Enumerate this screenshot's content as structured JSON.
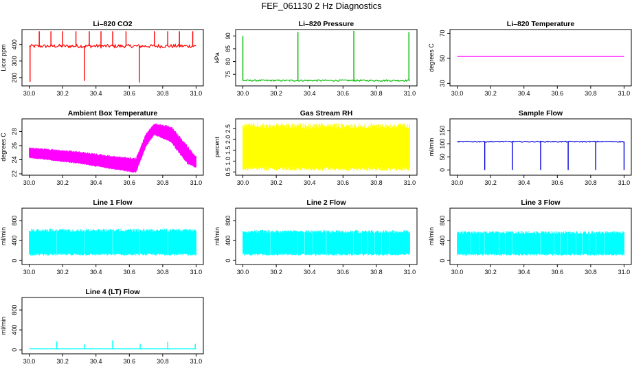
{
  "figure_title": "FEF_061130  2 Hz Diagnostics",
  "chart_data": [
    {
      "type": "line",
      "id": "co2",
      "title": "Li–820 CO2",
      "ylabel": "Licor ppm",
      "color": "#ff0000",
      "xlim": [
        30.0,
        31.0
      ],
      "ylim": [
        150,
        490
      ],
      "xticks": [
        "30.0",
        "30.2",
        "30.4",
        "30.6",
        "30.8",
        "31.0"
      ],
      "yticks": [
        "200",
        "300",
        "400"
      ],
      "ytick_values": [
        200,
        300,
        400
      ],
      "baseline": 390,
      "noise": 10,
      "spikes": [
        {
          "x": 30.005,
          "y": 175
        },
        {
          "x": 30.06,
          "y": 480
        },
        {
          "x": 30.13,
          "y": 480
        },
        {
          "x": 30.2,
          "y": 480
        },
        {
          "x": 30.28,
          "y": 480
        },
        {
          "x": 30.33,
          "y": 180
        },
        {
          "x": 30.36,
          "y": 480
        },
        {
          "x": 30.43,
          "y": 480
        },
        {
          "x": 30.5,
          "y": 480
        },
        {
          "x": 30.58,
          "y": 480
        },
        {
          "x": 30.66,
          "y": 170
        },
        {
          "x": 30.75,
          "y": 480
        },
        {
          "x": 30.83,
          "y": 480
        },
        {
          "x": 30.9,
          "y": 480
        },
        {
          "x": 30.98,
          "y": 480
        }
      ]
    },
    {
      "type": "line",
      "id": "pressure",
      "title": "Li–820 Pressure",
      "ylabel": "kPa",
      "color": "#00bb00",
      "xlim": [
        30.0,
        31.0
      ],
      "ylim": [
        70.5,
        92.5
      ],
      "xticks": [
        "30.0",
        "30.2",
        "30.4",
        "30.6",
        "30.8",
        "31.0"
      ],
      "yticks": [
        "75",
        "80",
        "85",
        "90"
      ],
      "ytick_values": [
        75,
        80,
        85,
        90
      ],
      "baseline": 72.6,
      "noise": 0.3,
      "spikes": [
        {
          "x": 30.0,
          "y": 90
        },
        {
          "x": 30.33,
          "y": 91.5
        },
        {
          "x": 30.665,
          "y": 92
        },
        {
          "x": 30.995,
          "y": 91.5
        }
      ]
    },
    {
      "type": "line",
      "id": "licor_temp",
      "title": "Li–820 Temperature",
      "ylabel": "degrees C",
      "color": "#ff00ff",
      "xlim": [
        30.0,
        31.0
      ],
      "ylim": [
        28,
        73
      ],
      "xticks": [
        "30.0",
        "30.2",
        "30.4",
        "30.6",
        "30.8",
        "31.0"
      ],
      "yticks": [
        "30",
        "50",
        "70"
      ],
      "ytick_values": [
        30,
        50,
        70
      ],
      "baseline": 51.5,
      "noise": 0,
      "spikes": []
    },
    {
      "type": "band",
      "id": "box_temp",
      "title": "Ambient Box Temperature",
      "ylabel": "degrees C",
      "color": "#ff00ff",
      "xlim": [
        30.0,
        31.0
      ],
      "ylim": [
        21.8,
        29.8
      ],
      "xticks": [
        "30.0",
        "30.2",
        "30.4",
        "30.6",
        "30.8",
        "31.0"
      ],
      "yticks": [
        "22",
        "24",
        "26",
        "28"
      ],
      "ytick_values": [
        22,
        24,
        26,
        28
      ],
      "upper": [
        [
          30.0,
          25.8
        ],
        [
          30.3,
          25.2
        ],
        [
          30.5,
          24.6
        ],
        [
          30.64,
          24.3
        ],
        [
          30.7,
          27.8
        ],
        [
          30.75,
          29.2
        ],
        [
          30.85,
          28.8
        ],
        [
          30.95,
          26.0
        ],
        [
          31.0,
          24.5
        ]
      ],
      "lower": [
        [
          30.0,
          24.2
        ],
        [
          30.3,
          23.4
        ],
        [
          30.5,
          22.6
        ],
        [
          30.64,
          22.1
        ],
        [
          30.7,
          25.8
        ],
        [
          30.75,
          27.5
        ],
        [
          30.85,
          26.4
        ],
        [
          30.95,
          23.3
        ],
        [
          31.0,
          22.8
        ]
      ]
    },
    {
      "type": "band",
      "id": "rh",
      "title": "Gas Stream RH",
      "ylabel": "percent",
      "color": "#ffff00",
      "xlim": [
        30.0,
        31.0
      ],
      "ylim": [
        0.35,
        2.95
      ],
      "xticks": [
        "30.0",
        "30.2",
        "30.4",
        "30.6",
        "30.8",
        "31.0"
      ],
      "yticks": [
        "0.5",
        "1.0",
        "1.5",
        "2.0",
        "2.5"
      ],
      "ytick_values": [
        0.5,
        1.0,
        1.5,
        2.0,
        2.5
      ],
      "upper": [
        [
          30.0,
          2.75
        ],
        [
          31.0,
          2.75
        ]
      ],
      "lower": [
        [
          30.0,
          0.55
        ],
        [
          31.0,
          0.55
        ]
      ]
    },
    {
      "type": "line",
      "id": "sample_flow",
      "title": "Sample Flow",
      "ylabel": "ml/min",
      "color": "#0000dd",
      "xlim": [
        30.0,
        31.0
      ],
      "ylim": [
        -20,
        195
      ],
      "xticks": [
        "30.0",
        "30.2",
        "30.4",
        "30.6",
        "30.8",
        "31.0"
      ],
      "yticks": [
        "0",
        "50",
        "100",
        "150"
      ],
      "ytick_values": [
        0,
        50,
        100,
        150
      ],
      "baseline": 108,
      "noise": 2,
      "spikes": [
        {
          "x": 30.165,
          "y": 0
        },
        {
          "x": 30.33,
          "y": 0
        },
        {
          "x": 30.5,
          "y": 0
        },
        {
          "x": 30.665,
          "y": 0
        },
        {
          "x": 30.83,
          "y": 0
        },
        {
          "x": 31.0,
          "y": 0
        }
      ]
    },
    {
      "type": "band",
      "id": "line1",
      "title": "Line 1 Flow",
      "ylabel": "ml/min",
      "color": "#00ffff",
      "xlim": [
        30.0,
        31.0
      ],
      "ylim": [
        -80,
        1050
      ],
      "xticks": [
        "30.0",
        "30.2",
        "30.4",
        "30.6",
        "30.8",
        "31.0"
      ],
      "yticks": [
        "0",
        "400",
        "800"
      ],
      "ytick_values": [
        0,
        400,
        800
      ],
      "upper": [
        [
          30.0,
          640
        ],
        [
          31.0,
          640
        ]
      ],
      "lower": [
        [
          30.0,
          100
        ],
        [
          31.0,
          100
        ]
      ],
      "gaps": [
        30.165,
        30.33,
        30.5,
        30.665,
        30.83
      ]
    },
    {
      "type": "band",
      "id": "line2",
      "title": "Line 2 Flow",
      "ylabel": "ml/min",
      "color": "#00ffff",
      "xlim": [
        30.0,
        31.0
      ],
      "ylim": [
        -80,
        1050
      ],
      "xticks": [
        "30.0",
        "30.2",
        "30.4",
        "30.6",
        "30.8",
        "31.0"
      ],
      "yticks": [
        "0",
        "400",
        "800"
      ],
      "ytick_values": [
        0,
        400,
        800
      ],
      "upper": [
        [
          30.0,
          610
        ],
        [
          31.0,
          610
        ]
      ],
      "lower": [
        [
          30.0,
          100
        ],
        [
          31.0,
          100
        ]
      ],
      "gaps": [
        30.165,
        30.33,
        30.37,
        30.42,
        30.5,
        30.665,
        30.71,
        30.75,
        30.79,
        30.83,
        30.88
      ]
    },
    {
      "type": "band",
      "id": "line3",
      "title": "Line 3 Flow",
      "ylabel": "ml/min",
      "color": "#00ffff",
      "xlim": [
        30.0,
        31.0
      ],
      "ylim": [
        -80,
        1050
      ],
      "xticks": [
        "30.0",
        "30.2",
        "30.4",
        "30.6",
        "30.8",
        "31.0"
      ],
      "yticks": [
        "0",
        "400",
        "800"
      ],
      "ytick_values": [
        0,
        400,
        800
      ],
      "upper": [
        [
          30.0,
          590
        ],
        [
          31.0,
          590
        ]
      ],
      "lower": [
        [
          30.0,
          100
        ],
        [
          31.0,
          100
        ]
      ],
      "gaps": [
        30.08,
        30.13,
        30.165,
        30.25,
        30.29,
        30.33,
        30.5,
        30.58,
        30.62,
        30.665,
        30.71,
        30.75,
        30.79,
        30.83,
        30.88
      ]
    },
    {
      "type": "line",
      "id": "line4",
      "title": "Line 4 (LT) Flow",
      "ylabel": "ml/min",
      "color": "#00ffff",
      "xlim": [
        30.0,
        31.0
      ],
      "ylim": [
        -80,
        1050
      ],
      "xticks": [
        "30.0",
        "30.2",
        "30.4",
        "30.6",
        "30.8",
        "31.0"
      ],
      "yticks": [
        "0",
        "400",
        "800"
      ],
      "ytick_values": [
        0,
        400,
        800
      ],
      "baseline": 20,
      "noise": 3,
      "spikes": [
        {
          "x": 30.165,
          "y": 170
        },
        {
          "x": 30.33,
          "y": 110
        },
        {
          "x": 30.5,
          "y": 190
        },
        {
          "x": 30.665,
          "y": 120
        },
        {
          "x": 30.83,
          "y": 160
        },
        {
          "x": 30.995,
          "y": 120
        }
      ]
    }
  ]
}
